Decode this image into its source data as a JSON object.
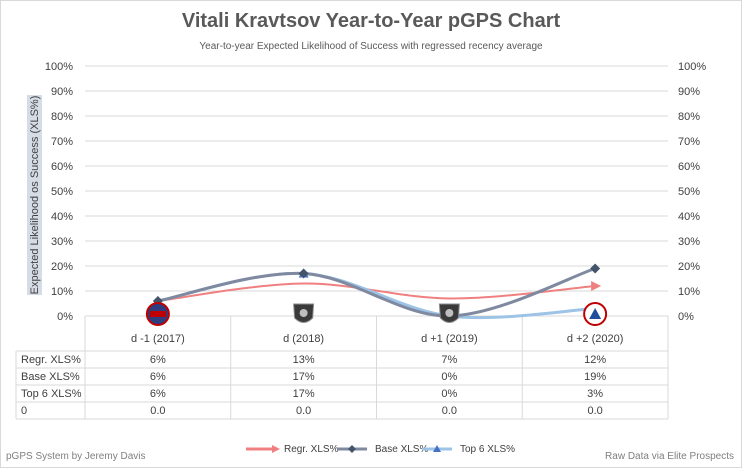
{
  "chart_data": {
    "type": "line",
    "title": "Vitali Kravtsov Year-to-Year pGPS Chart",
    "subtitle": "Year-to-year Expected Likelihood of Success with regressed recency average",
    "ylabel": "Expected Likelihood os Success (XLS%)",
    "ylim": [
      0,
      100
    ],
    "yticks": [
      "0%",
      "10%",
      "20%",
      "30%",
      "40%",
      "50%",
      "60%",
      "70%",
      "80%",
      "90%",
      "100%"
    ],
    "categories": [
      "d -1 (2017)",
      "d (2018)",
      "d +1 (2019)",
      "d +2 (2020)"
    ],
    "league_icons": [
      "mhl-logo-icon",
      "khl-logo-icon",
      "khl-logo-icon",
      "ahl-logo-icon"
    ],
    "series": [
      {
        "name": "Regr. XLS%",
        "values": [
          6,
          13,
          7,
          12
        ],
        "labels": [
          "6%",
          "13%",
          "7%",
          "12%"
        ],
        "color": "#f08080",
        "marker": "arrow"
      },
      {
        "name": "Base XLS%",
        "values": [
          6,
          17,
          0,
          19
        ],
        "labels": [
          "6%",
          "17%",
          "0%",
          "19%"
        ],
        "color": "#7f8aa0",
        "marker": "diamond"
      },
      {
        "name": "Top 6 XLS%",
        "values": [
          6,
          17,
          0,
          3
        ],
        "labels": [
          "6%",
          "17%",
          "0%",
          "3%"
        ],
        "color": "#9dc3e6",
        "marker": "triangle"
      }
    ],
    "table_extra_row": {
      "name": "0",
      "labels": [
        "0.0",
        "0.0",
        "0.0",
        "0.0"
      ]
    },
    "grid": true,
    "legend": "bottom"
  },
  "footer": {
    "left": "pGPS System by Jeremy Davis",
    "right": "Raw Data via Elite Prospects"
  }
}
